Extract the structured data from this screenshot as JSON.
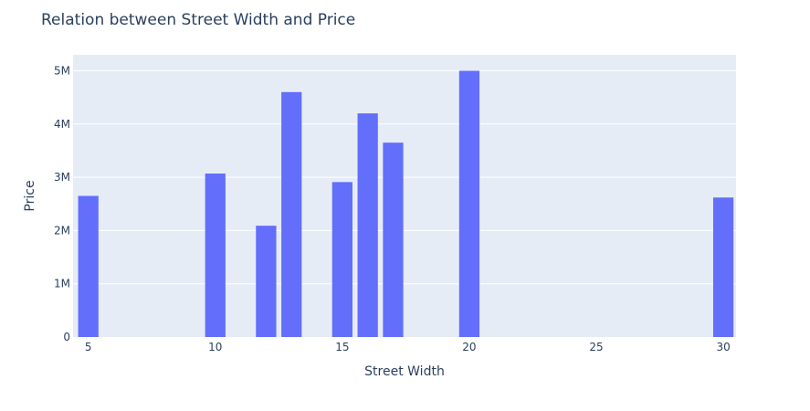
{
  "chart_data": {
    "type": "bar",
    "title": "Relation between Street Width and Price",
    "xlabel": "Street Width",
    "ylabel": "Price",
    "x": [
      5,
      10,
      12,
      13,
      15,
      16,
      17,
      20,
      30
    ],
    "values": [
      2650000,
      3070000,
      2090000,
      4600000,
      2910000,
      4200000,
      3650000,
      5000000,
      2620000
    ],
    "xlim": [
      4.4,
      30.5
    ],
    "ylim": [
      0,
      5300000
    ],
    "x_ticks": [
      5,
      10,
      15,
      20,
      25,
      30
    ],
    "x_tick_labels": [
      "5",
      "10",
      "15",
      "20",
      "25",
      "30"
    ],
    "y_ticks": [
      0,
      1000000,
      2000000,
      3000000,
      4000000,
      5000000
    ],
    "y_tick_labels": [
      "0",
      "1M",
      "2M",
      "3M",
      "4M",
      "5M"
    ],
    "grid": true,
    "colors": {
      "bar": "#636efa",
      "plot_background": "#e5ecf6",
      "grid": "#ffffff",
      "text": "#2a3f5f"
    }
  }
}
